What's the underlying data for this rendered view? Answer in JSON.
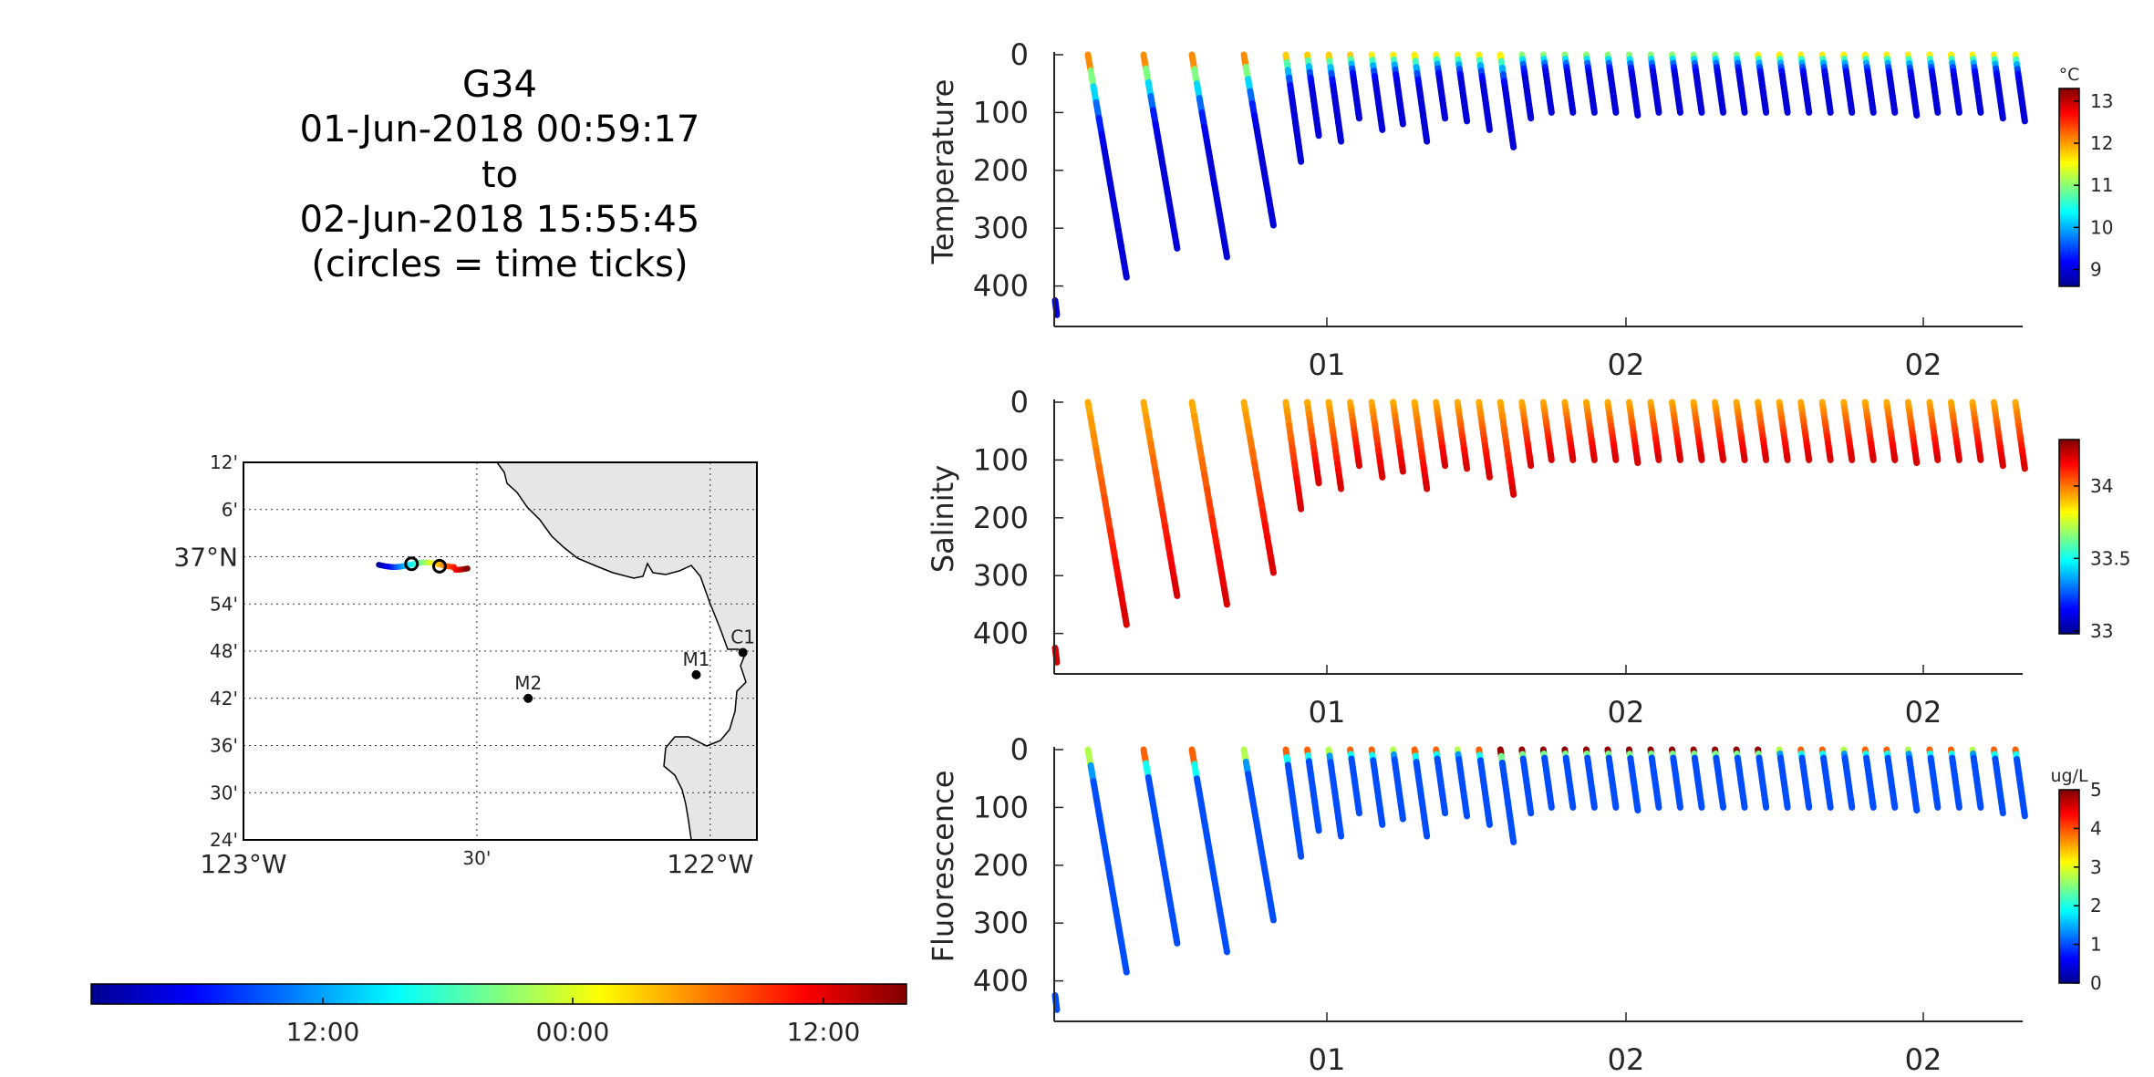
{
  "title": {
    "glider": "G34",
    "start": "01-Jun-2018 00:59:17",
    "to": "to",
    "end": "02-Jun-2018 15:55:45",
    "note": "(circles = time ticks)"
  },
  "colormap": [
    "#00008f",
    "#0000ff",
    "#0080ff",
    "#00ffff",
    "#80ff80",
    "#ffff00",
    "#ff8000",
    "#ff0000",
    "#800000"
  ],
  "chart_data": [
    {
      "type": "scatter",
      "name": "map",
      "lat_ticks": [
        "12'",
        "6'",
        "37°N",
        "54'",
        "48'",
        "42'",
        "36'",
        "30'",
        "24'"
      ],
      "lon_ticks": [
        "123°W",
        "30'",
        "122°W"
      ],
      "lat_range": [
        36.4,
        37.2
      ],
      "lon_range": [
        -123.0,
        -121.9
      ],
      "stations": [
        {
          "label": "C1",
          "lon": -121.93,
          "lat": 36.797
        },
        {
          "label": "M1",
          "lon": -122.03,
          "lat": 36.75
        },
        {
          "label": "M2",
          "lon": -122.39,
          "lat": 36.7
        }
      ],
      "track": {
        "lon_start": -122.71,
        "lon_end": -122.52,
        "lat": 36.983
      },
      "time_tick_circles": [
        {
          "lon": -122.64,
          "lat": 36.985
        },
        {
          "lon": -122.58,
          "lat": 36.98
        }
      ]
    },
    {
      "type": "colorbar",
      "name": "time-colorbar",
      "ticks": [
        "12:00",
        "00:00",
        "12:00"
      ]
    },
    {
      "type": "scatter",
      "name": "temperature",
      "ylabel": "Temperature",
      "ylim": [
        0,
        470
      ],
      "yticks": [
        "0",
        "100",
        "200",
        "300",
        "400"
      ],
      "xticks": [
        "01",
        "02",
        "02"
      ],
      "cbar_unit": "°C",
      "cbar_range": [
        8.6,
        13.3
      ],
      "cbar_ticks": [
        "13",
        "12",
        "11",
        "10",
        "9"
      ],
      "profile_depths": [
        385,
        335,
        350,
        295,
        185,
        140,
        150,
        110,
        130,
        120,
        150,
        110,
        115,
        130,
        160,
        110,
        100,
        100,
        100,
        100,
        105,
        100,
        100,
        100,
        100,
        100,
        100,
        100,
        100,
        100,
        100,
        100,
        100,
        105,
        100,
        100,
        100,
        110,
        115
      ]
    },
    {
      "type": "scatter",
      "name": "salinity",
      "ylabel": "Salinity",
      "ylim": [
        0,
        470
      ],
      "yticks": [
        "0",
        "100",
        "200",
        "300",
        "400"
      ],
      "xticks": [
        "01",
        "02",
        "02"
      ],
      "cbar_unit": "",
      "cbar_range": [
        32.98,
        34.32
      ],
      "cbar_ticks": [
        "34",
        "33.5",
        "33"
      ]
    },
    {
      "type": "scatter",
      "name": "fluorescence",
      "ylabel": "Fluorescence",
      "ylim": [
        0,
        470
      ],
      "yticks": [
        "0",
        "100",
        "200",
        "300",
        "400"
      ],
      "xticks": [
        "01",
        "02",
        "02"
      ],
      "cbar_unit": "ug/L",
      "cbar_range": [
        0,
        5
      ],
      "cbar_ticks": [
        "5",
        "4",
        "3",
        "2",
        "1",
        "0"
      ]
    }
  ]
}
